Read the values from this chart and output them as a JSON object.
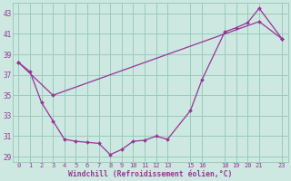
{
  "xlabel": "Windchill (Refroidissement éolien,°C)",
  "background_color": "#cce8e0",
  "grid_color": "#99ccbb",
  "line_color": "#993399",
  "xlim": [
    -0.5,
    23.5
  ],
  "ylim": [
    28.5,
    44.0
  ],
  "yticks": [
    29,
    31,
    33,
    35,
    37,
    39,
    41,
    43
  ],
  "x_ticks": [
    0,
    1,
    2,
    3,
    4,
    5,
    6,
    7,
    8,
    9,
    10,
    11,
    12,
    13,
    15,
    16,
    18,
    19,
    20,
    21,
    23
  ],
  "line1_x": [
    0,
    1,
    2,
    3,
    4,
    5,
    6,
    7,
    8,
    9,
    10,
    11,
    12,
    13,
    15,
    16,
    18,
    19,
    20,
    21,
    23
  ],
  "line1_y": [
    38.2,
    37.3,
    34.3,
    32.5,
    30.7,
    30.5,
    30.4,
    30.3,
    29.2,
    29.7,
    30.5,
    30.6,
    31.0,
    30.7,
    33.5,
    36.5,
    41.2,
    41.6,
    42.1,
    43.5,
    40.5
  ],
  "line2_x": [
    0,
    3,
    21,
    23
  ],
  "line2_y": [
    38.2,
    35.0,
    42.2,
    40.5
  ],
  "figsize": [
    3.2,
    2.0
  ],
  "dpi": 100
}
